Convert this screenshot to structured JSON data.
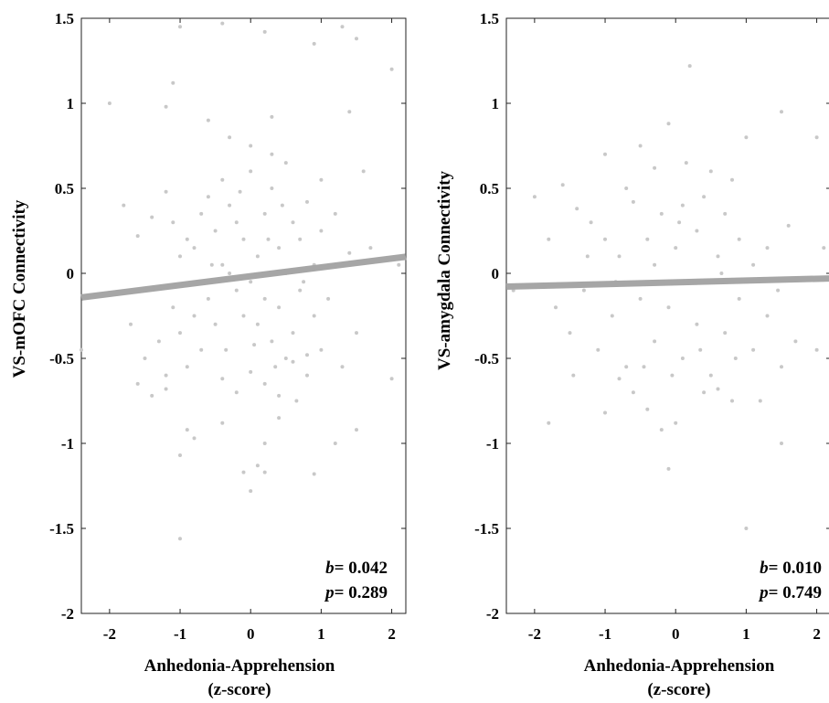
{
  "chart_data": [
    {
      "type": "scatter",
      "xlabel": "Anhedonia-Apprehension",
      "xlabel_sub": "(z-score)",
      "ylabel": "VS-mOFC Connectivity",
      "xlim": [
        -2.4,
        2.2
      ],
      "ylim": [
        -2,
        1.5
      ],
      "xticks": [
        -2,
        -1,
        0,
        1,
        2
      ],
      "xtick_labels": [
        "-2",
        "-1",
        "0",
        "1",
        "2"
      ],
      "yticks": [
        1.5,
        1,
        0.5,
        0,
        -0.5,
        -1,
        -1.5,
        -2
      ],
      "ytick_labels": [
        "1.5",
        "1",
        "0.5",
        "0",
        "-0.5",
        "-1",
        "-1.5",
        "-2"
      ],
      "grid": false,
      "fit_line": {
        "slope": 0.052,
        "intercept": -0.017,
        "color": "#a6a6a6"
      },
      "point_color": "#c8c8c8",
      "stats": {
        "b_label": "b",
        "b_value": "= 0.042",
        "p_label": "p",
        "p_value": "= 0.289"
      },
      "points": [
        [
          -2.0,
          1.0
        ],
        [
          -1.1,
          1.12
        ],
        [
          -1.0,
          1.45
        ],
        [
          -0.4,
          1.47
        ],
        [
          0.2,
          1.42
        ],
        [
          0.9,
          1.35
        ],
        [
          1.3,
          1.45
        ],
        [
          1.5,
          1.38
        ],
        [
          -1.2,
          0.98
        ],
        [
          -0.6,
          0.9
        ],
        [
          0.0,
          0.75
        ],
        [
          0.3,
          0.92
        ],
        [
          1.4,
          0.95
        ],
        [
          2.0,
          1.2
        ],
        [
          -0.4,
          0.55
        ],
        [
          -1.2,
          0.48
        ],
        [
          -1.6,
          0.22
        ],
        [
          -1.8,
          0.4
        ],
        [
          -1.4,
          0.33
        ],
        [
          -1.1,
          0.3
        ],
        [
          -1.0,
          0.1
        ],
        [
          -0.9,
          0.2
        ],
        [
          -0.8,
          0.15
        ],
        [
          -0.7,
          0.35
        ],
        [
          -0.6,
          0.45
        ],
        [
          -0.5,
          0.25
        ],
        [
          -0.4,
          0.05
        ],
        [
          -0.3,
          0.4
        ],
        [
          -0.2,
          0.3
        ],
        [
          -0.1,
          0.2
        ],
        [
          0.0,
          0.6
        ],
        [
          0.1,
          0.1
        ],
        [
          0.2,
          0.35
        ],
        [
          0.3,
          0.5
        ],
        [
          0.4,
          0.15
        ],
        [
          0.5,
          0.65
        ],
        [
          0.6,
          0.3
        ],
        [
          0.7,
          0.2
        ],
        [
          0.8,
          0.42
        ],
        [
          0.9,
          0.05
        ],
        [
          1.0,
          0.25
        ],
        [
          1.2,
          0.35
        ],
        [
          1.4,
          0.12
        ],
        [
          1.6,
          0.6
        ],
        [
          1.0,
          0.55
        ],
        [
          0.3,
          0.7
        ],
        [
          -0.3,
          0.8
        ],
        [
          -0.2,
          -0.1
        ],
        [
          -0.1,
          -0.25
        ],
        [
          0.0,
          -0.05
        ],
        [
          0.1,
          -0.3
        ],
        [
          0.2,
          -0.15
        ],
        [
          0.3,
          -0.4
        ],
        [
          0.4,
          -0.2
        ],
        [
          0.5,
          -0.5
        ],
        [
          0.6,
          -0.35
        ],
        [
          0.7,
          -0.1
        ],
        [
          0.8,
          -0.6
        ],
        [
          0.9,
          -0.25
        ],
        [
          1.0,
          -0.45
        ],
        [
          1.1,
          -0.15
        ],
        [
          1.3,
          -0.55
        ],
        [
          1.5,
          -0.35
        ],
        [
          -0.5,
          -0.3
        ],
        [
          -0.6,
          -0.15
        ],
        [
          -0.7,
          -0.45
        ],
        [
          -0.8,
          -0.25
        ],
        [
          -0.9,
          -0.55
        ],
        [
          -1.0,
          -0.35
        ],
        [
          -1.1,
          -0.2
        ],
        [
          -1.2,
          -0.6
        ],
        [
          -1.3,
          -0.4
        ],
        [
          -1.5,
          -0.5
        ],
        [
          -1.7,
          -0.3
        ],
        [
          -1.6,
          -0.65
        ],
        [
          -1.4,
          -0.72
        ],
        [
          -1.2,
          -0.68
        ],
        [
          -0.4,
          -0.62
        ],
        [
          -0.2,
          -0.7
        ],
        [
          0.0,
          -0.58
        ],
        [
          0.2,
          -0.65
        ],
        [
          0.4,
          -0.72
        ],
        [
          0.6,
          -0.52
        ],
        [
          0.8,
          -0.48
        ],
        [
          -0.9,
          -0.92
        ],
        [
          -1.0,
          -1.07
        ],
        [
          -0.8,
          -0.97
        ],
        [
          -0.4,
          -0.88
        ],
        [
          0.4,
          -0.85
        ],
        [
          0.2,
          -1.0
        ],
        [
          -0.1,
          -1.17
        ],
        [
          0.1,
          -1.13
        ],
        [
          0.2,
          -1.17
        ],
        [
          0.0,
          -1.28
        ],
        [
          0.9,
          -1.18
        ],
        [
          1.2,
          -1.0
        ],
        [
          1.5,
          -0.92
        ],
        [
          2.0,
          -0.62
        ],
        [
          -1.0,
          -1.56
        ],
        [
          -2.4,
          -0.45
        ],
        [
          2.1,
          0.05
        ],
        [
          1.7,
          0.15
        ],
        [
          0.5,
          0.0
        ],
        [
          -0.3,
          0.0
        ],
        [
          0.25,
          0.2
        ],
        [
          0.75,
          -0.05
        ],
        [
          -0.55,
          0.05
        ],
        [
          0.45,
          0.4
        ],
        [
          -0.15,
          0.48
        ],
        [
          0.05,
          -0.42
        ],
        [
          0.35,
          -0.55
        ],
        [
          -0.35,
          -0.45
        ],
        [
          0.65,
          -0.75
        ]
      ]
    },
    {
      "type": "scatter",
      "xlabel": "Anhedonia-Apprehension",
      "xlabel_sub": "(z-score)",
      "ylabel": "VS-amygdala Connectivity",
      "xlim": [
        -2.4,
        2.2
      ],
      "ylim": [
        -2,
        1.5
      ],
      "xticks": [
        -2,
        -1,
        0,
        1,
        2
      ],
      "xtick_labels": [
        "-2",
        "-1",
        "0",
        "1",
        "2"
      ],
      "yticks": [
        1.5,
        1,
        0.5,
        0,
        -0.5,
        -1,
        -1.5,
        -2
      ],
      "ytick_labels": [
        "1.5",
        "1",
        "0.5",
        "0",
        "-0.5",
        "-1",
        "-1.5",
        "-2"
      ],
      "grid": false,
      "fit_line": {
        "slope": 0.0105,
        "intercept": -0.053,
        "color": "#a6a6a6"
      },
      "point_color": "#c8c8c8",
      "stats": {
        "b_label": "b",
        "b_value": "= 0.010",
        "p_label": "p",
        "p_value": "= 0.749"
      },
      "points": [
        [
          0.2,
          1.22
        ],
        [
          -0.1,
          0.88
        ],
        [
          1.0,
          0.8
        ],
        [
          1.5,
          0.95
        ],
        [
          2.0,
          0.8
        ],
        [
          -0.5,
          0.75
        ],
        [
          -1.0,
          0.7
        ],
        [
          -0.3,
          0.62
        ],
        [
          0.5,
          0.6
        ],
        [
          0.8,
          0.55
        ],
        [
          -1.6,
          0.52
        ],
        [
          -2.0,
          0.45
        ],
        [
          -1.8,
          0.2
        ],
        [
          -1.4,
          0.38
        ],
        [
          -1.2,
          0.3
        ],
        [
          -1.0,
          0.2
        ],
        [
          -0.8,
          0.1
        ],
        [
          -0.6,
          0.42
        ],
        [
          -0.4,
          0.2
        ],
        [
          -0.2,
          0.35
        ],
        [
          0.0,
          0.15
        ],
        [
          0.1,
          0.4
        ],
        [
          0.3,
          0.25
        ],
        [
          0.4,
          0.45
        ],
        [
          0.6,
          0.1
        ],
        [
          0.7,
          0.35
        ],
        [
          0.9,
          0.2
        ],
        [
          1.1,
          0.05
        ],
        [
          1.3,
          0.15
        ],
        [
          1.6,
          0.28
        ],
        [
          2.1,
          0.15
        ],
        [
          -0.7,
          0.5
        ],
        [
          -1.7,
          -0.2
        ],
        [
          -1.5,
          -0.35
        ],
        [
          -1.3,
          -0.1
        ],
        [
          -1.1,
          -0.45
        ],
        [
          -0.9,
          -0.25
        ],
        [
          -0.7,
          -0.55
        ],
        [
          -0.5,
          -0.15
        ],
        [
          -0.3,
          -0.4
        ],
        [
          -0.1,
          -0.2
        ],
        [
          0.1,
          -0.5
        ],
        [
          0.3,
          -0.3
        ],
        [
          0.5,
          -0.6
        ],
        [
          0.7,
          -0.35
        ],
        [
          0.9,
          -0.15
        ],
        [
          1.1,
          -0.45
        ],
        [
          1.3,
          -0.25
        ],
        [
          1.5,
          -0.55
        ],
        [
          1.7,
          -0.4
        ],
        [
          2.0,
          -0.45
        ],
        [
          -0.6,
          -0.7
        ],
        [
          -0.4,
          -0.8
        ],
        [
          -0.8,
          -0.62
        ],
        [
          0.4,
          -0.7
        ],
        [
          0.6,
          -0.68
        ],
        [
          0.8,
          -0.75
        ],
        [
          -1.8,
          -0.88
        ],
        [
          -1.0,
          -0.82
        ],
        [
          -0.2,
          -0.92
        ],
        [
          0.0,
          -0.88
        ],
        [
          1.5,
          -1.0
        ],
        [
          1.2,
          -0.75
        ],
        [
          -0.1,
          -1.15
        ],
        [
          1.0,
          -1.5
        ],
        [
          2.2,
          -1.5
        ],
        [
          -2.3,
          -0.1
        ],
        [
          0.2,
          -0.05
        ],
        [
          -0.3,
          0.05
        ],
        [
          0.65,
          0.0
        ],
        [
          -0.85,
          -0.05
        ],
        [
          1.45,
          -0.1
        ],
        [
          -1.25,
          0.1
        ],
        [
          0.15,
          0.65
        ],
        [
          -0.45,
          -0.55
        ],
        [
          0.35,
          -0.45
        ],
        [
          0.85,
          -0.5
        ],
        [
          -1.45,
          -0.6
        ],
        [
          0.05,
          0.3
        ],
        [
          -0.05,
          -0.6
        ]
      ]
    }
  ]
}
